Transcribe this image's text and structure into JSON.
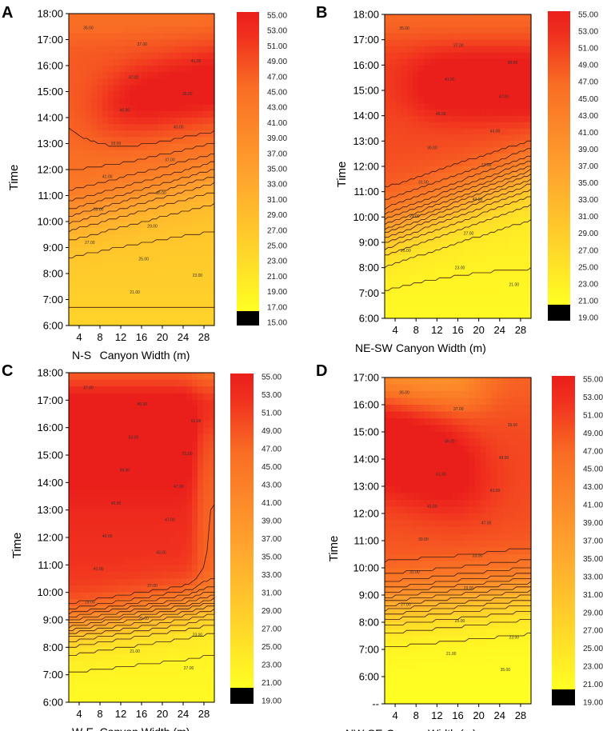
{
  "figure": {
    "colors": {
      "low": "#ffff22",
      "mid1": "#ffd52a",
      "mid2": "#ffa42e",
      "high1": "#f96d24",
      "high2": "#f0301e",
      "max": "#ea1f1b",
      "below_min": "#000000",
      "contour_line": "#3a1a10"
    }
  },
  "chart_data": [
    {
      "panel": "A",
      "type": "heatmap",
      "orientation": "N-S",
      "xlabel_prefix": "N-S",
      "xlabel": "Canyon Width (m)",
      "ylabel": "Time",
      "x_ticks": [
        "4",
        "8",
        "12",
        "16",
        "20",
        "24",
        "28"
      ],
      "y_ticks": [
        "6:00",
        "7:00",
        "8:00",
        "9:00",
        "10:00",
        "11:00",
        "12:00",
        "13:00",
        "14:00",
        "15:00",
        "16:00",
        "17:00",
        "18:00"
      ],
      "y_range": [
        6,
        18
      ],
      "colorbar_labels": [
        "55.00",
        "53.00",
        "51.00",
        "49.00",
        "47.00",
        "45.00",
        "43.00",
        "41.00",
        "39.00",
        "37.00",
        "35.00",
        "33.00",
        "31.00",
        "29.00",
        "27.00",
        "25.00",
        "23.00",
        "21.00",
        "19.00",
        "17.00",
        "15.00"
      ],
      "colorbar_range": [
        15,
        55
      ],
      "contour_labels": [
        "35.00",
        "37.00",
        "41.00",
        "47.00",
        "39.00",
        "45.00",
        "43.00",
        "39.00",
        "37.00",
        "41.00",
        "35.00",
        "33.00",
        "29.00",
        "27.00",
        "25.00",
        "23.00",
        "21.00"
      ]
    },
    {
      "panel": "B",
      "type": "heatmap",
      "orientation": "NE-SW",
      "xlabel_prefix": "NE-SW",
      "xlabel": "Canyon Width (m)",
      "ylabel": "Time",
      "x_ticks": [
        "4",
        "8",
        "12",
        "16",
        "20",
        "24",
        "28"
      ],
      "y_ticks": [
        "6:00",
        "7:00",
        "8:00",
        "9:00",
        "10:00",
        "11:00",
        "12:00",
        "13:00",
        "14:00",
        "15:00",
        "16:00",
        "17:00",
        "18:00"
      ],
      "y_range": [
        6,
        18
      ],
      "colorbar_labels": [
        "55.00",
        "53.00",
        "51.00",
        "49.00",
        "47.00",
        "45.00",
        "43.00",
        "41.00",
        "39.00",
        "37.00",
        "35.00",
        "33.00",
        "31.00",
        "29.00",
        "27.00",
        "25.00",
        "23.00",
        "21.00",
        "19.00"
      ],
      "colorbar_range": [
        19,
        55
      ],
      "contour_labels": [
        "35.00",
        "37.00",
        "39.00",
        "41.00",
        "47.00",
        "45.00",
        "43.00",
        "39.00",
        "37.00",
        "31.00",
        "41.00",
        "29.00",
        "27.00",
        "25.00",
        "23.00",
        "21.00"
      ]
    },
    {
      "panel": "C",
      "type": "heatmap",
      "orientation": "W-E",
      "xlabel_prefix": "W-E",
      "xlabel": "Canyon Width (m)",
      "ylabel": "Time",
      "x_ticks": [
        "4",
        "8",
        "12",
        "16",
        "20",
        "24",
        "28"
      ],
      "y_ticks": [
        "6:00",
        "7:00",
        "8:00",
        "9:00",
        "10:00",
        "11:00",
        "12:00",
        "13:00",
        "14:00",
        "15:00",
        "16:00",
        "17:00",
        "18:00"
      ],
      "y_range": [
        6,
        18
      ],
      "colorbar_labels": [
        "55.00",
        "53.00",
        "51.00",
        "49.00",
        "47.00",
        "45.00",
        "43.00",
        "41.00",
        "39.00",
        "37.00",
        "35.00",
        "33.00",
        "31.00",
        "29.00",
        "27.00",
        "25.00",
        "23.00",
        "21.00",
        "19.00"
      ],
      "colorbar_range": [
        19,
        55
      ],
      "contour_labels": [
        "37.00",
        "45.00",
        "51.00",
        "53.00",
        "51.00",
        "49.00",
        "47.00",
        "45.00",
        "47.00",
        "49.00",
        "43.00",
        "41.00",
        "37.00",
        "29.00",
        "25.00",
        "23.00",
        "21.00",
        "27.00"
      ]
    },
    {
      "panel": "D",
      "type": "heatmap",
      "orientation": "NW-SE",
      "xlabel_prefix": "NW-SE",
      "xlabel": "Canyon Width (m)",
      "ylabel": "Time",
      "x_ticks": [
        "4",
        "8",
        "12",
        "16",
        "20",
        "24",
        "28"
      ],
      "y_ticks": [
        "--",
        "6:00",
        "7:00",
        "8:00",
        "9:00",
        "10:00",
        "11:00",
        "12:00",
        "13:00",
        "14:00",
        "15:00",
        "16:00",
        "17:00"
      ],
      "y_range": [
        5,
        17
      ],
      "colorbar_labels": [
        "55.00",
        "53.00",
        "51.00",
        "49.00",
        "47.00",
        "45.00",
        "43.00",
        "41.00",
        "39.00",
        "37.00",
        "35.00",
        "33.00",
        "31.00",
        "29.00",
        "27.00",
        "25.00",
        "23.00",
        "21.00",
        "19.00"
      ],
      "colorbar_range": [
        19,
        55
      ],
      "contour_labels": [
        "35.00",
        "37.00",
        "39.00",
        "45.00",
        "49.00",
        "51.00",
        "43.00",
        "41.00",
        "47.00",
        "39.00",
        "33.00",
        "31.00",
        "29.00",
        "27.00",
        "25.00",
        "23.00",
        "21.00",
        "35.00"
      ]
    }
  ]
}
